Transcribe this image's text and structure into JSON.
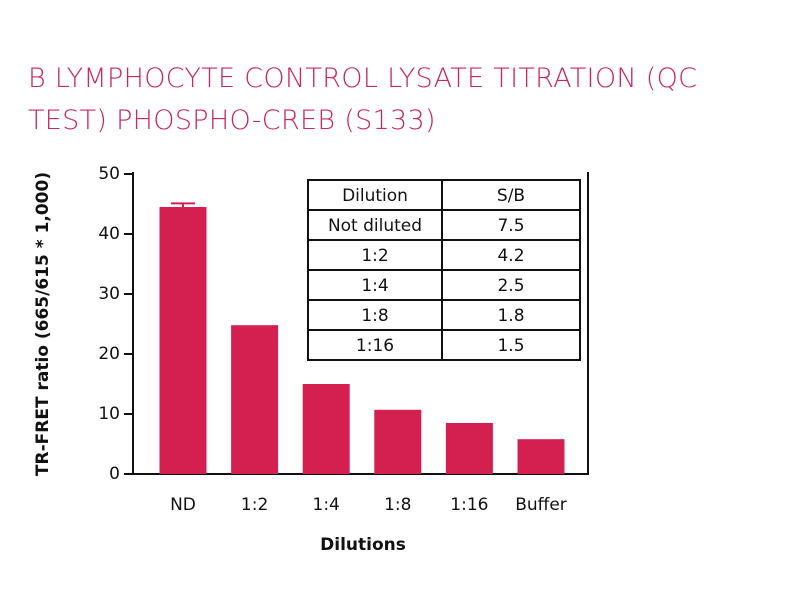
{
  "chart_data": {
    "type": "bar",
    "title": "B LYMPHOCYTE CONTROL LYSATE TITRATION (QC TEST) PHOSPHO-CREB (S133)",
    "x_label": "Dilutions",
    "y_label": "TR-FRET ratio (665/615 * 1,000)",
    "categories": [
      "ND",
      "1:2",
      "1:4",
      "1:8",
      "1:16",
      "Buffer"
    ],
    "values": [
      44.5,
      24.8,
      15.0,
      10.7,
      8.5,
      5.8
    ],
    "errors": [
      0.6,
      null,
      null,
      null,
      null,
      null
    ],
    "color": "#d42050",
    "ylim": [
      0,
      50
    ],
    "yticks": [
      0,
      10,
      20,
      30,
      40,
      50
    ],
    "table": {
      "header": [
        "Dilution",
        "S/B"
      ],
      "rows": [
        [
          "Not diluted",
          7.5
        ],
        [
          "1:2",
          4.2
        ],
        [
          "1:4",
          2.5
        ],
        [
          "1:8",
          1.8
        ],
        [
          "1:16",
          1.5
        ]
      ]
    }
  }
}
